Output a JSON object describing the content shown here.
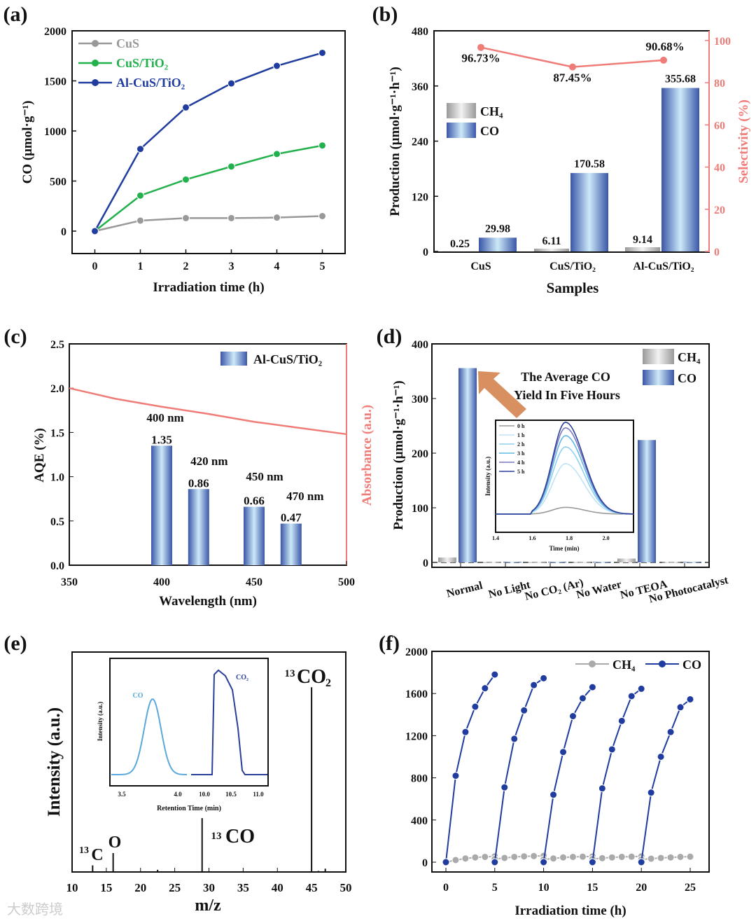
{
  "watermark": "大数跨境",
  "chart_data": [
    {
      "panel": "(a)",
      "type": "line",
      "xlabel": "Irradiation time (h)",
      "ylabel": "CO (μmol·g⁻¹)",
      "xlim": [
        -0.5,
        5.5
      ],
      "ylim": [
        -224,
        2000
      ],
      "xticks": [
        0,
        1,
        2,
        3,
        4,
        5
      ],
      "yticks": [
        0,
        500,
        1000,
        1500,
        2000
      ],
      "legend_position": "top-left",
      "x": [
        0,
        1,
        2,
        3,
        4,
        5
      ],
      "series": [
        {
          "name": "CuS",
          "color": "#999999",
          "values": [
            0,
            105,
            130,
            130,
            135,
            150
          ]
        },
        {
          "name": "CuS/TiO₂",
          "color": "#22b14c",
          "values": [
            0,
            355,
            515,
            645,
            770,
            855
          ]
        },
        {
          "name": "Al-CuS/TiO₂",
          "color": "#1f3c9e",
          "values": [
            0,
            820,
            1235,
            1475,
            1650,
            1780
          ]
        }
      ]
    },
    {
      "panel": "(b)",
      "type": "bar",
      "xlabel": "Samples",
      "ylabel": "Production (μmol·g⁻¹·h⁻¹)",
      "ylabel_right": "Selectivity (%)",
      "ylim": [
        0,
        480
      ],
      "ylim_right": [
        0,
        104.6
      ],
      "yticks": [
        0,
        120,
        240,
        360,
        480
      ],
      "yticks_right": [
        0,
        20,
        40,
        60,
        80,
        100
      ],
      "categories": [
        "CuS",
        "CuS/TiO₂",
        "Al-CuS/TiO₂"
      ],
      "legend_position": "center-left",
      "series": [
        {
          "name": "CH₄",
          "values": [
            0.25,
            6.11,
            9.14
          ],
          "labels": [
            "0.25",
            "6.11",
            "9.14"
          ]
        },
        {
          "name": "CO",
          "values": [
            29.98,
            170.58,
            355.68
          ],
          "labels": [
            "29.98",
            "170.58",
            "355.68"
          ]
        }
      ],
      "selectivity": {
        "values": [
          96.73,
          87.45,
          90.68
        ],
        "labels": [
          "96.73%",
          "87.45%",
          "90.68%"
        ],
        "color": "#f07c78"
      }
    },
    {
      "panel": "(c)",
      "type": "bar",
      "xlabel": "Wavelength (nm)",
      "ylabel": "AQE (%)",
      "ylabel_right": "Absorbance (a.u.)",
      "xlim": [
        350,
        500
      ],
      "ylim": [
        0,
        2.5
      ],
      "xticks": [
        350,
        400,
        450,
        500
      ],
      "yticks": [
        0,
        0.5,
        1.0,
        1.5,
        2.0,
        2.5
      ],
      "legend": "Al-CuS/TiO₂",
      "x": [
        400,
        420,
        450,
        470
      ],
      "values": [
        1.35,
        0.86,
        0.66,
        0.47
      ],
      "labels": [
        "1.35",
        "0.86",
        "0.66",
        "0.47"
      ],
      "wl_labels": [
        "400 nm",
        "420 nm",
        "450 nm",
        "470 nm"
      ],
      "absorbance": {
        "x": [
          350,
          375,
          400,
          425,
          450,
          475,
          500
        ],
        "y": [
          2.0,
          1.88,
          1.79,
          1.71,
          1.62,
          1.55,
          1.48
        ]
      }
    },
    {
      "panel": "(d)",
      "type": "bar",
      "ylabel": "Production (μmol·g⁻¹·h⁻¹)",
      "ylim": [
        -10,
        400
      ],
      "yticks": [
        0,
        100,
        200,
        300,
        400
      ],
      "categories": [
        "Normal",
        "No Light",
        "No CO₂ (Ar)",
        "No Water",
        "No TEOA",
        "No Photocatalyst"
      ],
      "series": [
        {
          "name": "CH₄",
          "values": [
            9,
            0.5,
            0.5,
            0.5,
            7,
            0.5
          ]
        },
        {
          "name": "CO",
          "values": [
            355.68,
            1,
            1,
            1,
            224,
            1
          ]
        }
      ],
      "annotation": [
        "The Average CO",
        "Yield  In Five Hours"
      ],
      "inset": {
        "type": "line",
        "xlabel": "Time (min)",
        "ylabel": "Intensity (a.u.)",
        "xlim": [
          1.4,
          2.15
        ],
        "xticks": [
          "1.4",
          "1.6",
          "1.8",
          "2.0"
        ],
        "series": [
          {
            "name": "0 h",
            "peak": 0.06,
            "color": "#999999"
          },
          {
            "name": "1 h",
            "peak": 0.45,
            "color": "#bfe3f5"
          },
          {
            "name": "2 h",
            "peak": 0.6,
            "color": "#8fd0f0"
          },
          {
            "name": "3 h",
            "peak": 0.7,
            "color": "#5fb8e6"
          },
          {
            "name": "4 h",
            "peak": 0.77,
            "color": "#7a78c0"
          },
          {
            "name": "5 h",
            "peak": 0.82,
            "color": "#2a3f9a"
          }
        ]
      }
    },
    {
      "panel": "(e)",
      "type": "bar",
      "xlabel": "m/z",
      "ylabel": "Intensity (a.u.)",
      "xlim": [
        10,
        50
      ],
      "ylim": [
        0,
        1
      ],
      "xticks": [
        10,
        15,
        20,
        25,
        30,
        35,
        40,
        45,
        50
      ],
      "peaks": [
        {
          "x": 13,
          "y": 0.03
        },
        {
          "x": 16,
          "y": 0.086
        },
        {
          "x": 22.5,
          "y": 0.01
        },
        {
          "x": 29,
          "y": 0.245
        },
        {
          "x": 45,
          "y": 0.84
        },
        {
          "x": 46,
          "y": 0.005
        },
        {
          "x": 47,
          "y": 0.015
        }
      ],
      "peak_labels": {
        "c13": "13",
        "c": "C",
        "o": "O",
        "co_sup": "13",
        "co": "CO",
        "co2_sup": "13",
        "co2": "CO",
        "co2_sub": "2"
      },
      "inset": {
        "xlabel": "Retention Time (min)",
        "ylabel": "Intensity (a.u.)",
        "xticks_left": [
          "3.5",
          "4.0"
        ],
        "xticks_right": [
          "10.0",
          "10.5",
          "11.0"
        ],
        "label_co": "CO",
        "label_co2": "CO₂"
      }
    },
    {
      "panel": "(f)",
      "type": "line",
      "xlabel": "Irradiation time (h)",
      "xlim": [
        -1.5,
        27
      ],
      "ylim": [
        -90,
        2000
      ],
      "xticks": [
        0,
        5,
        10,
        15,
        20,
        25
      ],
      "yticks": [
        0,
        400,
        800,
        1200,
        1600,
        2000
      ],
      "legend_position": "top-right",
      "series": [
        {
          "name": "CH₄",
          "color": "#aaaaaa",
          "cycles": [
            [
              0,
              20,
              35,
              45,
              50,
              55
            ],
            [
              30,
              40,
              50,
              55,
              58,
              60
            ],
            [
              25,
              35,
              45,
              50,
              52,
              55
            ],
            [
              30,
              38,
              45,
              50,
              52,
              55
            ],
            [
              25,
              33,
              40,
              45,
              50,
              52
            ]
          ]
        },
        {
          "name": "CO",
          "color": "#1f3c9e",
          "cycles": [
            [
              0,
              820,
              1235,
              1475,
              1650,
              1780
            ],
            [
              0,
              710,
              1170,
              1440,
              1680,
              1745
            ],
            [
              0,
              640,
              1045,
              1385,
              1555,
              1660
            ],
            [
              0,
              700,
              1070,
              1340,
              1575,
              1645
            ],
            [
              0,
              660,
              1000,
              1235,
              1470,
              1545
            ]
          ]
        }
      ]
    }
  ]
}
